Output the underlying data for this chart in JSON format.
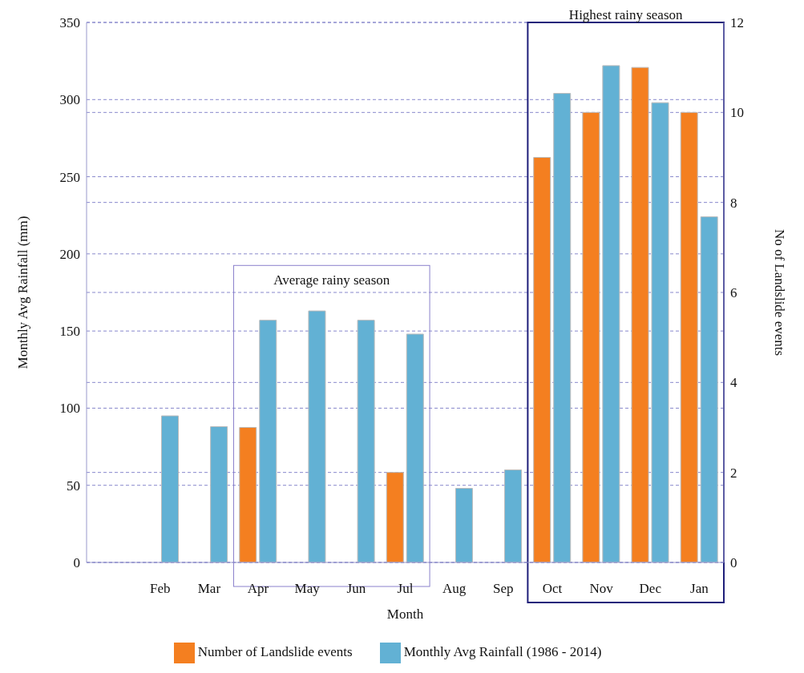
{
  "chart_data": {
    "type": "bar",
    "xlabel": "Month",
    "ylabel": "Monthly Avg Rainfall (mm)",
    "y2label": "No of Landslide events",
    "categories": [
      null,
      "Feb",
      "Mar",
      "Apr",
      "May",
      "Jun",
      "Jul",
      "Aug",
      "Sep",
      "Oct",
      "Nov",
      "Dec",
      "Jan"
    ],
    "series": [
      {
        "name": "Number of Landslide events",
        "color": "#f47f20",
        "axis": "y2",
        "values": [
          null,
          null,
          null,
          3,
          null,
          null,
          2,
          null,
          null,
          9,
          10,
          11,
          10
        ]
      },
      {
        "name": "Monthly Avg Rainfall (1986 - 2014)",
        "color": "#62b1d4",
        "values": [
          null,
          95,
          88,
          157,
          163,
          157,
          148,
          48,
          60,
          304,
          322,
          298,
          224
        ]
      }
    ],
    "ylim": [
      0,
      350
    ],
    "yticks": [
      0,
      50,
      100,
      150,
      200,
      250,
      300,
      350
    ],
    "y2lim": [
      0,
      12
    ],
    "y2ticks": [
      0,
      2,
      4,
      6,
      8,
      10,
      12
    ],
    "annotations": [
      "Average rainy season",
      "Highest rainy season"
    ],
    "grid": true,
    "legend": "bottom"
  }
}
